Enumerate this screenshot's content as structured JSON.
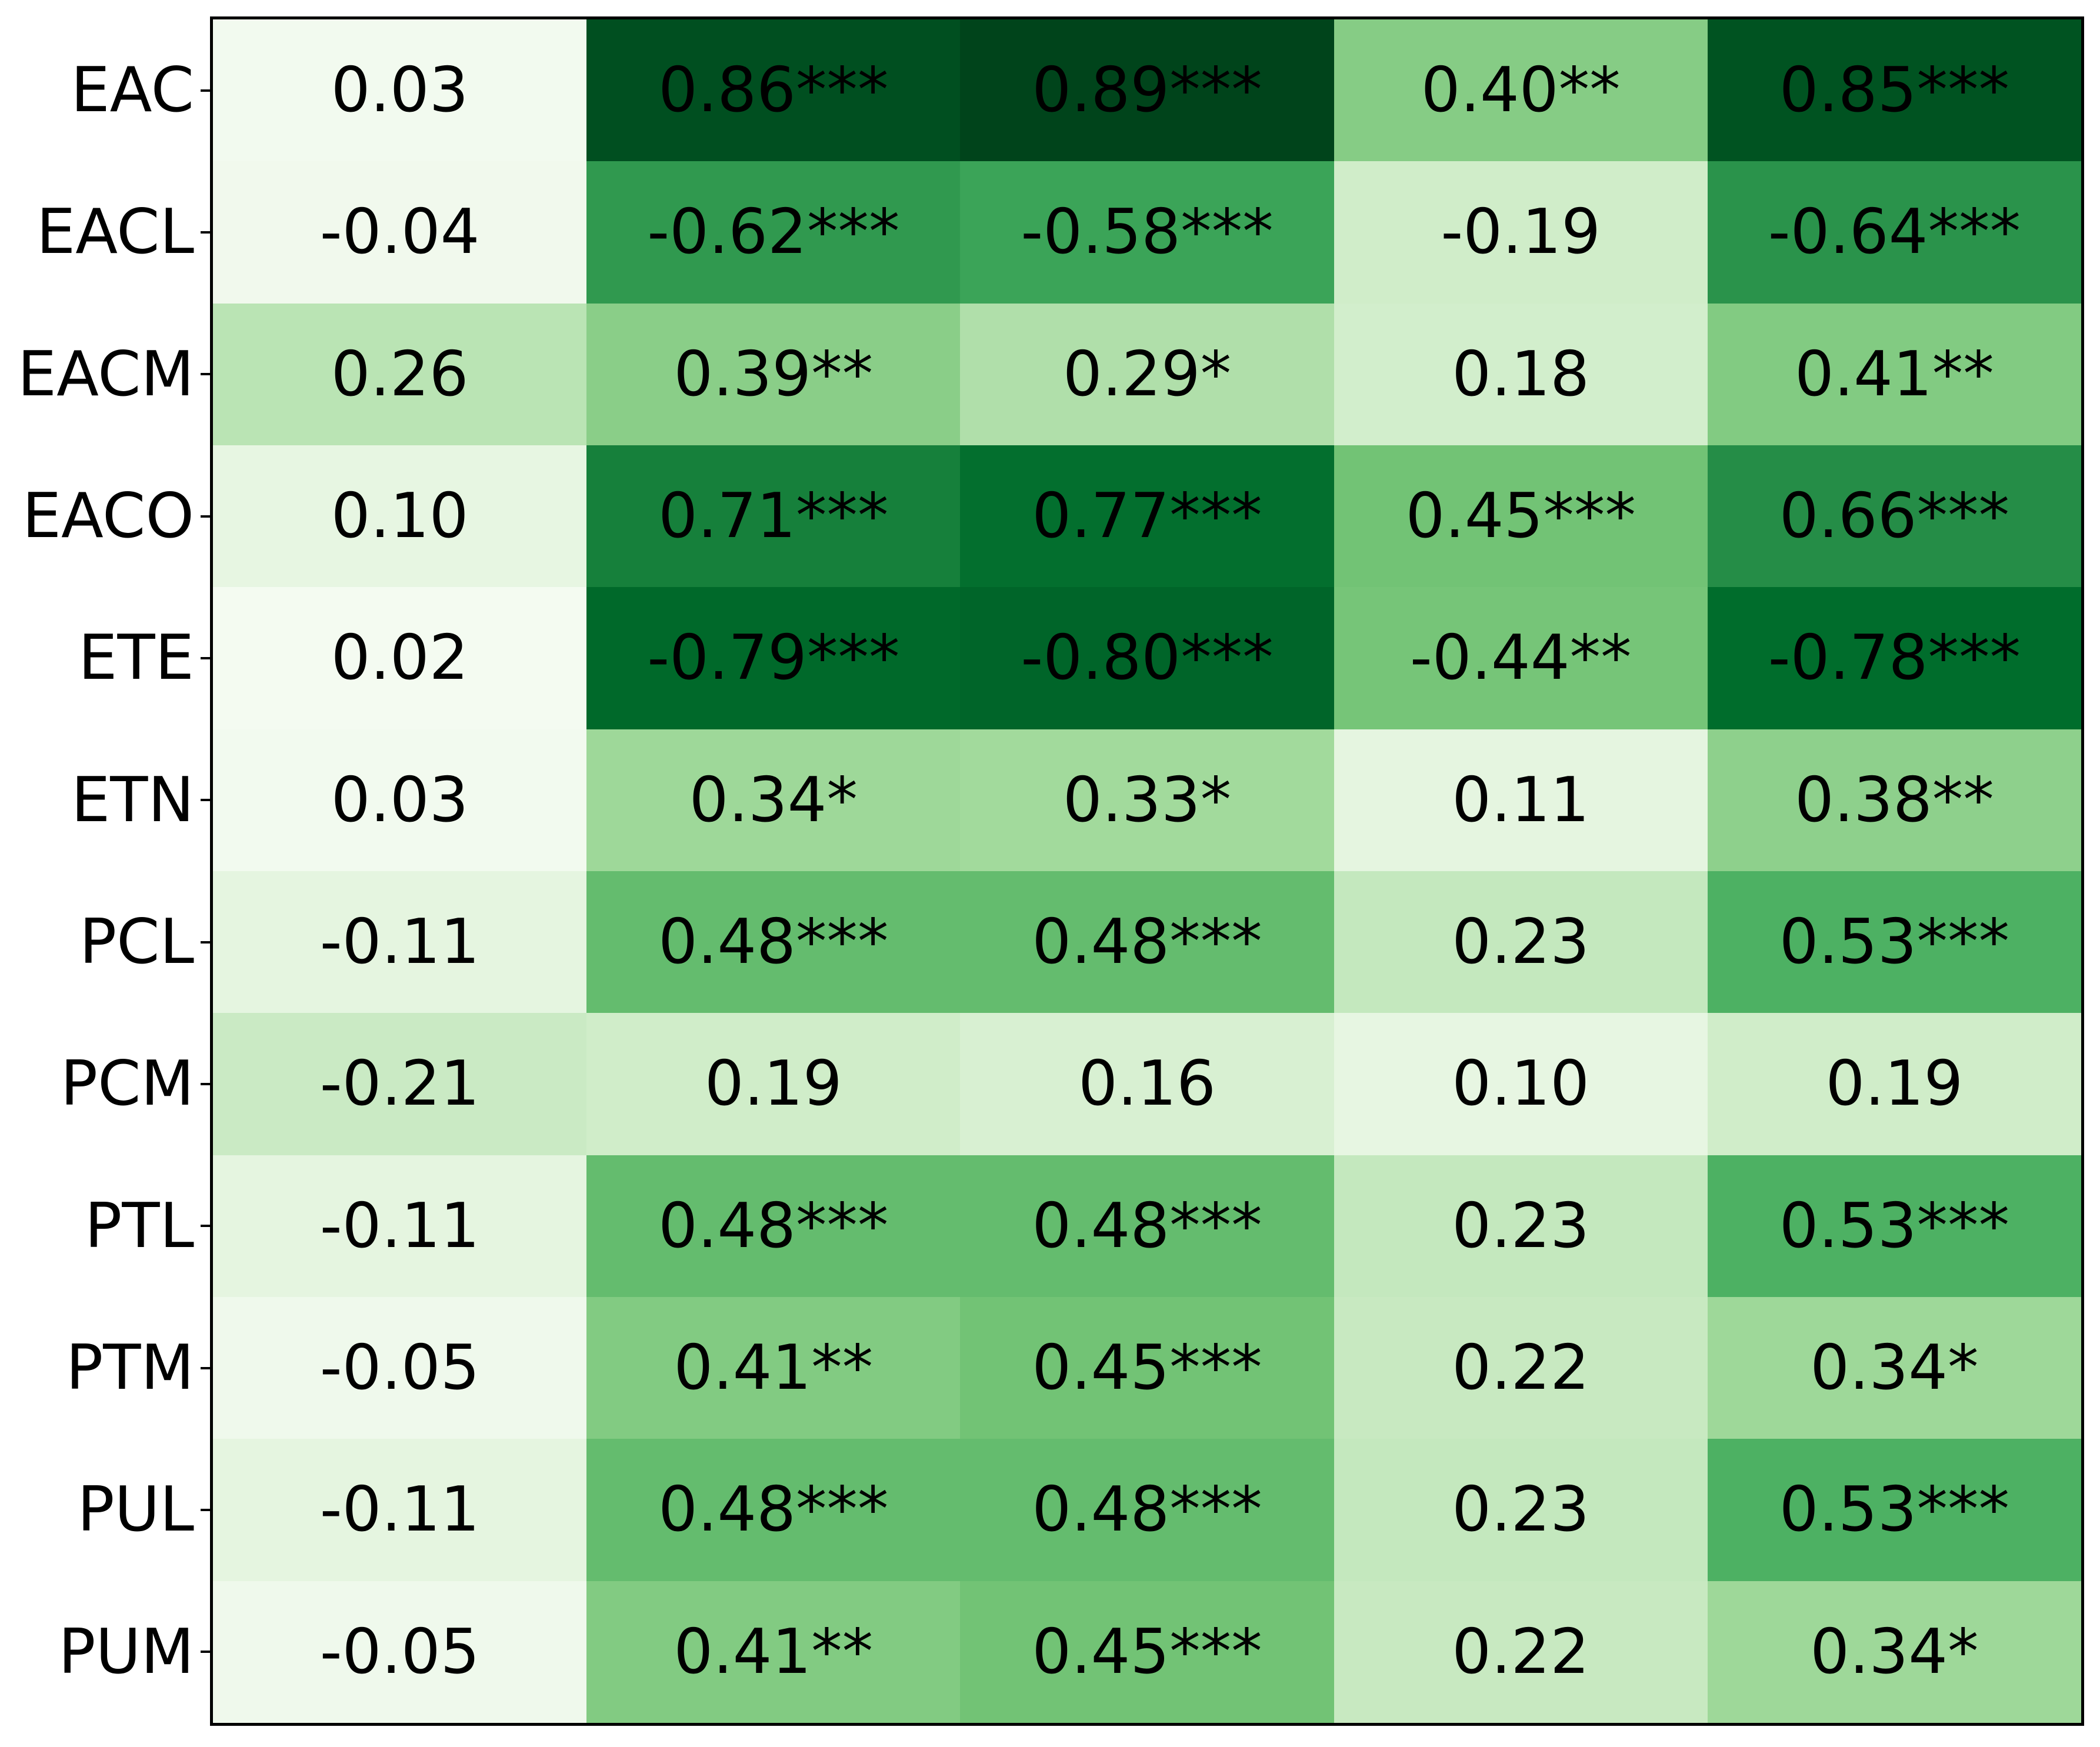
{
  "figure": {
    "background_color": "#ffffff",
    "border_color": "#000000",
    "text_color": "#000000"
  },
  "chart_data": {
    "type": "heatmap",
    "title": "",
    "xlabel": "",
    "ylabel": "",
    "rows": [
      "EAC",
      "EACL",
      "EACM",
      "EACO",
      "ETE",
      "ETN",
      "PCL",
      "PCM",
      "PTL",
      "PTM",
      "PUL",
      "PUM"
    ],
    "columns": [
      "",
      "",
      "",
      "",
      ""
    ],
    "values": [
      [
        0.03,
        0.86,
        0.89,
        0.4,
        0.85
      ],
      [
        -0.04,
        -0.62,
        -0.58,
        -0.19,
        -0.64
      ],
      [
        0.26,
        0.39,
        0.29,
        0.18,
        0.41
      ],
      [
        0.1,
        0.71,
        0.77,
        0.45,
        0.66
      ],
      [
        0.02,
        -0.79,
        -0.8,
        -0.44,
        -0.78
      ],
      [
        0.03,
        0.34,
        0.33,
        0.11,
        0.38
      ],
      [
        -0.11,
        0.48,
        0.48,
        0.23,
        0.53
      ],
      [
        -0.21,
        0.19,
        0.16,
        0.1,
        0.19
      ],
      [
        -0.11,
        0.48,
        0.48,
        0.23,
        0.53
      ],
      [
        -0.05,
        0.41,
        0.45,
        0.22,
        0.34
      ],
      [
        -0.11,
        0.48,
        0.48,
        0.23,
        0.53
      ],
      [
        -0.05,
        0.41,
        0.45,
        0.22,
        0.34
      ]
    ],
    "cell_text": [
      [
        "0.03",
        "0.86***",
        "0.89***",
        "0.40**",
        "0.85***"
      ],
      [
        "-0.04",
        "-0.62***",
        "-0.58***",
        "-0.19",
        "-0.64***"
      ],
      [
        "0.26",
        "0.39**",
        "0.29*",
        "0.18",
        "0.41**"
      ],
      [
        "0.10",
        "0.71***",
        "0.77***",
        "0.45***",
        "0.66***"
      ],
      [
        "0.02",
        "-0.79***",
        "-0.80***",
        "-0.44**",
        "-0.78***"
      ],
      [
        "0.03",
        "0.34*",
        "0.33*",
        "0.11",
        "0.38**"
      ],
      [
        "-0.11",
        "0.48***",
        "0.48***",
        "0.23",
        "0.53***"
      ],
      [
        "-0.21",
        "0.19",
        "0.16",
        "0.10",
        "0.19"
      ],
      [
        "-0.11",
        "0.48***",
        "0.48***",
        "0.23",
        "0.53***"
      ],
      [
        "-0.05",
        "0.41**",
        "0.45***",
        "0.22",
        "0.34*"
      ],
      [
        "-0.11",
        "0.48***",
        "0.48***",
        "0.23",
        "0.53***"
      ],
      [
        "-0.05",
        "0.41**",
        "0.45***",
        "0.22",
        "0.34*"
      ]
    ],
    "annotation_style": "value followed by significance stars (*, **, ***) where present",
    "colormap": "Greens",
    "color_scale": "absolute value of cell",
    "vmin": 0,
    "vmax": 0.89,
    "colormap_stops": [
      "#f7fcf5",
      "#e5f5e0",
      "#c7e9c0",
      "#a1d99b",
      "#74c476",
      "#41ab5d",
      "#238b45",
      "#006d2c",
      "#00441b"
    ],
    "grid": false,
    "legend": "none",
    "colorbar": "none"
  }
}
